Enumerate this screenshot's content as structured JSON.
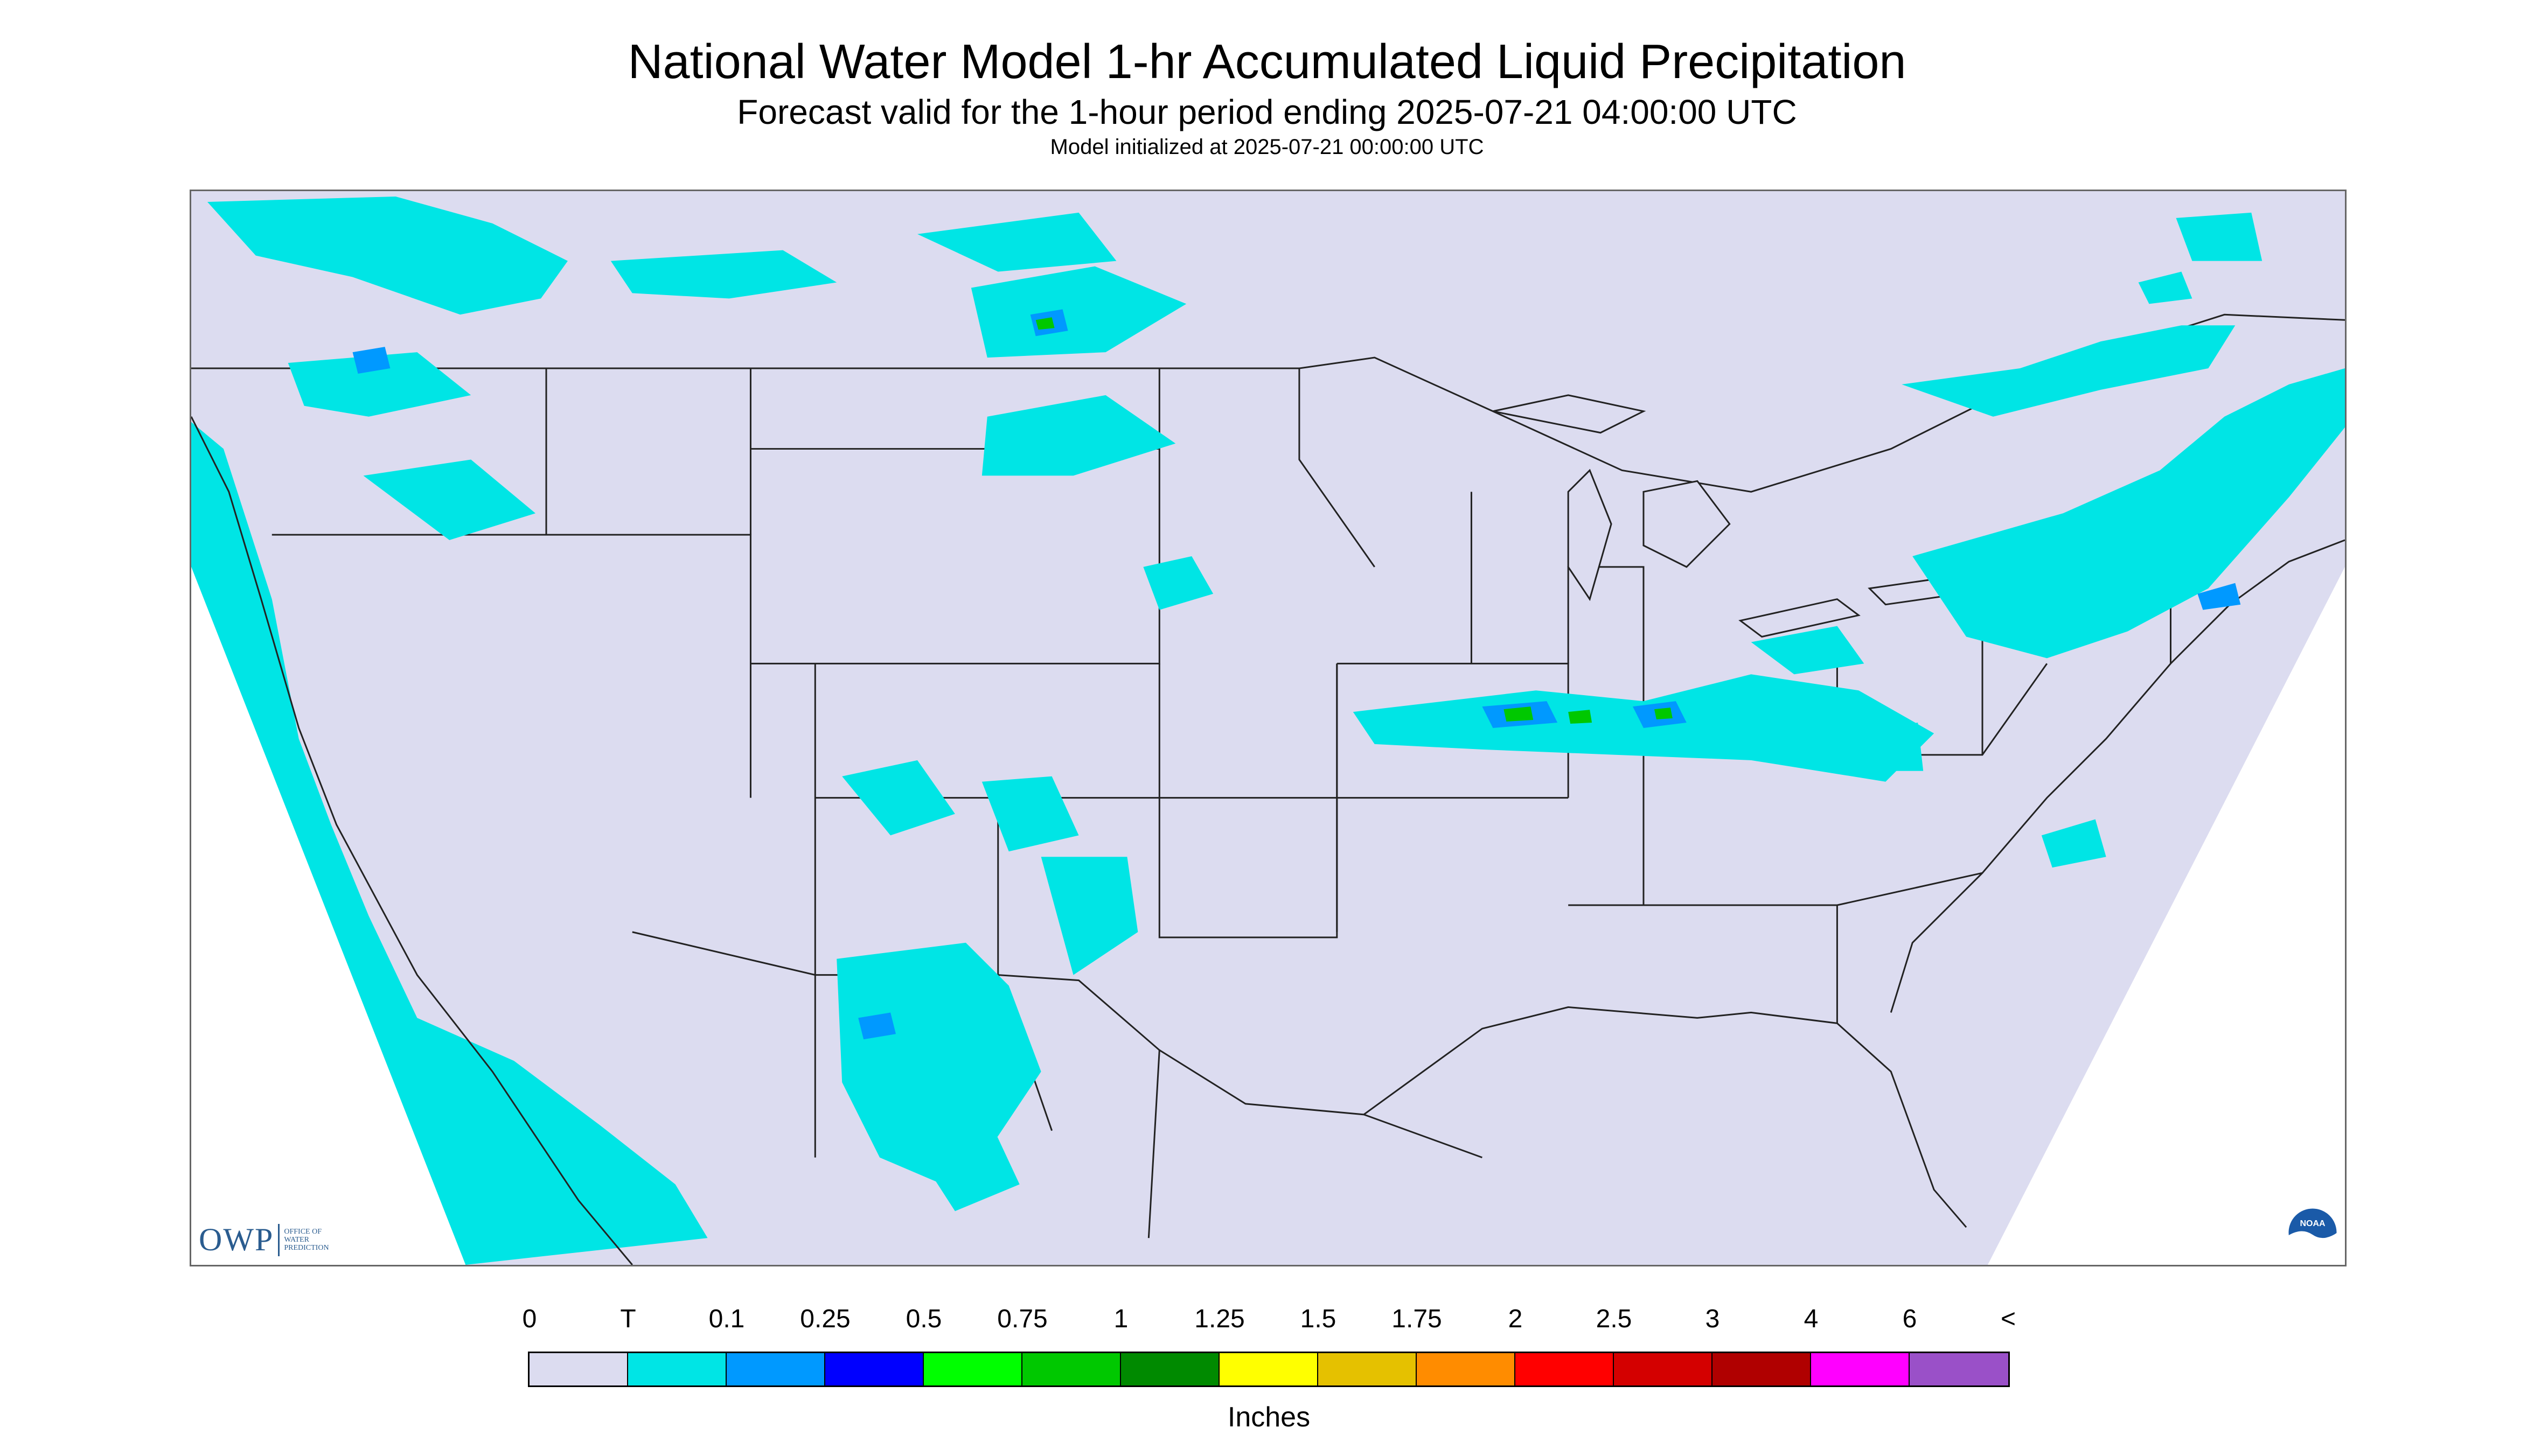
{
  "header": {
    "title": "National Water Model 1-hr Accumulated Liquid Precipitation",
    "subtitle": "Forecast valid for the 1-hour period ending 2025-07-21 04:00:00 UTC",
    "init": "Model initialized at 2025-07-21 00:00:00 UTC"
  },
  "map": {
    "region": "CONUS",
    "background_color": "#dcdcf0",
    "outside_color": "#ffffff",
    "boundary_color": "#222222",
    "precip_color_trace": "#00e5e5",
    "precip_color_01": "#0099ff",
    "precip_color_025": "#0000ff",
    "precip_color_05": "#00ff00",
    "precip_color_075": "#00c800",
    "precip_color_1": "#008a00"
  },
  "logos": {
    "owp_text": "OWP",
    "owp_sub": "OFFICE OF\nWATER\nPREDICTION",
    "noaa_text": "NOAA"
  },
  "legend": {
    "labels": [
      "0",
      "T",
      "0.1",
      "0.25",
      "0.5",
      "0.75",
      "1",
      "1.25",
      "1.5",
      "1.75",
      "2",
      "2.5",
      "3",
      "4",
      "6",
      "<"
    ],
    "colors": [
      "#dcdcf0",
      "#00e5e5",
      "#0099ff",
      "#0000ff",
      "#00ff00",
      "#00c800",
      "#008a00",
      "#ffff00",
      "#e5c100",
      "#ff8c00",
      "#ff0000",
      "#d40000",
      "#b00000",
      "#ff00ff",
      "#9a50c8"
    ],
    "units": "Inches"
  }
}
